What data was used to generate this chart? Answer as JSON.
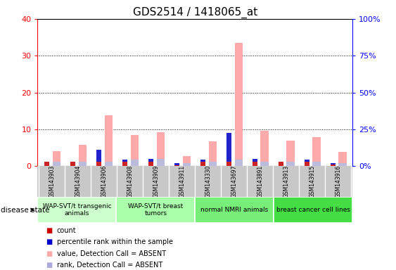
{
  "title": "GDS2514 / 1418065_at",
  "samples": [
    "GSM143903",
    "GSM143904",
    "GSM143906",
    "GSM143908",
    "GSM143909",
    "GSM143911",
    "GSM143330",
    "GSM143697",
    "GSM143891",
    "GSM143913",
    "GSM143915",
    "GSM143916"
  ],
  "count_values": [
    1.2,
    1.2,
    1.2,
    1.2,
    1.2,
    0.3,
    1.2,
    1.2,
    1.2,
    1.2,
    1.2,
    0.5
  ],
  "rank_values": [
    1.2,
    1.2,
    4.5,
    1.8,
    2.0,
    0.8,
    1.8,
    9.0,
    2.0,
    1.2,
    1.8,
    0.8
  ],
  "absent_value": [
    4.0,
    5.8,
    13.8,
    8.5,
    9.2,
    2.8,
    6.8,
    33.5,
    9.5,
    7.0,
    7.8,
    3.8
  ],
  "absent_rank": [
    1.2,
    1.2,
    1.2,
    1.8,
    2.0,
    0.8,
    1.2,
    1.8,
    1.2,
    1.2,
    1.2,
    0.8
  ],
  "ylim_left": [
    0,
    40
  ],
  "ylim_right": [
    0,
    100
  ],
  "yticks_left": [
    0,
    10,
    20,
    30,
    40
  ],
  "ytick_labels_right": [
    "0%",
    "25%",
    "50%",
    "75%",
    "100%"
  ],
  "groups": [
    {
      "label": "WAP-SVT/t transgenic\nanimals",
      "start": 0,
      "end": 3,
      "color": "#ccffcc"
    },
    {
      "label": "WAP-SVT/t breast\ntumors",
      "start": 3,
      "end": 6,
      "color": "#aaffaa"
    },
    {
      "label": "normal NMRI animals",
      "start": 6,
      "end": 9,
      "color": "#77ee77"
    },
    {
      "label": "breast cancer cell lines",
      "start": 9,
      "end": 12,
      "color": "#44dd44"
    }
  ],
  "disease_state_label": "disease state",
  "legend_items": [
    {
      "label": "count",
      "color": "#cc0000"
    },
    {
      "label": "percentile rank within the sample",
      "color": "#0000cc"
    },
    {
      "label": "value, Detection Call = ABSENT",
      "color": "#ffaaaa"
    },
    {
      "label": "rank, Detection Call = ABSENT",
      "color": "#aaaadd"
    }
  ],
  "count_color": "#cc2222",
  "rank_color": "#2222cc",
  "absent_color": "#ffaaaa",
  "absent_rank_color": "#bbbbdd",
  "plot_bg": "#ffffff",
  "xtick_bg": "#c8c8c8",
  "grid_color": "black",
  "left_tick_color": "red",
  "right_tick_color": "blue",
  "title_fontsize": 11,
  "tick_fontsize": 8,
  "sample_fontsize": 5.5,
  "group_fontsize": 6.5,
  "legend_fontsize": 7
}
